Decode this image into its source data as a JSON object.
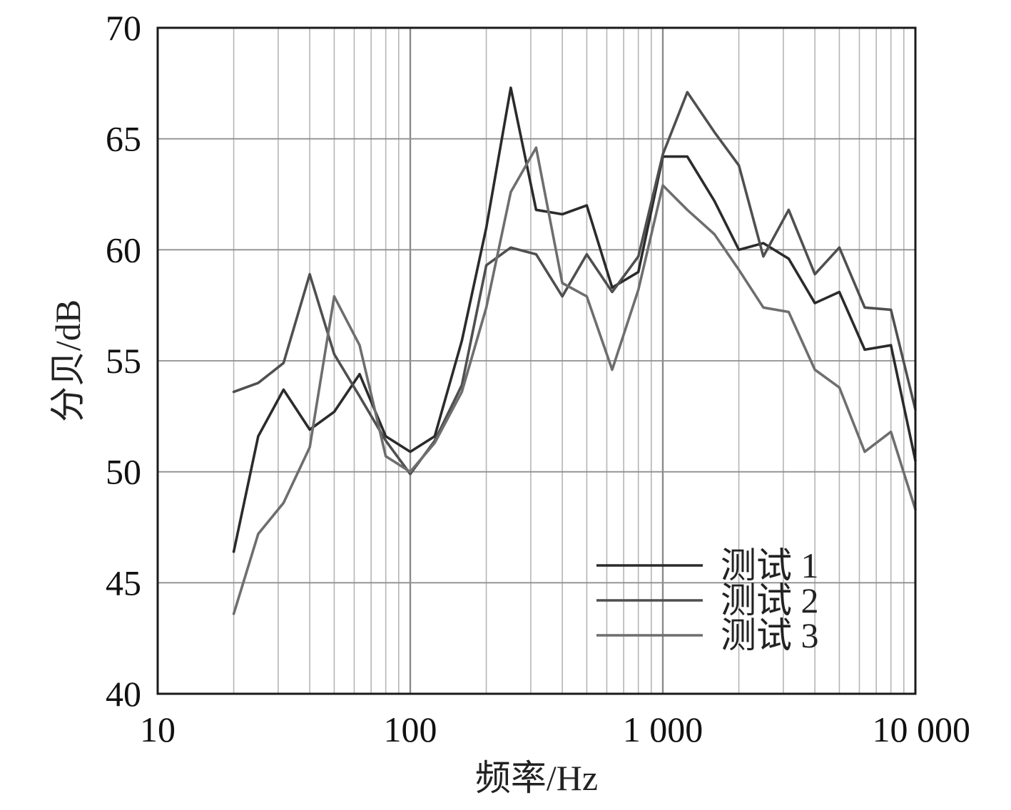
{
  "chart_data": {
    "type": "line",
    "xscale": "log",
    "xlabel": "频率/Hz",
    "ylabel": "分贝/dB",
    "xlim": [
      10,
      10000
    ],
    "ylim": [
      40,
      70
    ],
    "grid": true,
    "legend_position": "bottom-right",
    "x_ticks": [
      {
        "value": 10,
        "label": "10"
      },
      {
        "value": 100,
        "label": "100"
      },
      {
        "value": 1000,
        "label": "1 000"
      },
      {
        "value": 10000,
        "label": "10 000"
      }
    ],
    "y_ticks": [
      {
        "value": 40,
        "label": "40"
      },
      {
        "value": 45,
        "label": "45"
      },
      {
        "value": 50,
        "label": "50"
      },
      {
        "value": 55,
        "label": "55"
      },
      {
        "value": 60,
        "label": "60"
      },
      {
        "value": 65,
        "label": "65"
      },
      {
        "value": 70,
        "label": "70"
      }
    ],
    "x": [
      20,
      25,
      31.5,
      40,
      50,
      63,
      80,
      100,
      125,
      160,
      200,
      250,
      315,
      400,
      500,
      630,
      800,
      1000,
      1250,
      1600,
      2000,
      2500,
      3150,
      4000,
      5000,
      6300,
      8000,
      10000
    ],
    "series": [
      {
        "name": "测试 1",
        "color": "#2b2b2b",
        "values": [
          46.4,
          51.6,
          53.7,
          51.9,
          52.7,
          54.4,
          51.6,
          50.9,
          51.6,
          55.9,
          61.0,
          67.3,
          61.8,
          61.6,
          62.0,
          58.3,
          59.0,
          64.2,
          64.2,
          62.2,
          60.0,
          60.3,
          59.6,
          57.6,
          58.1,
          55.5,
          55.7,
          50.5
        ]
      },
      {
        "name": "测试 2",
        "color": "#4f4f4f",
        "values": [
          53.6,
          54.0,
          54.9,
          58.9,
          55.3,
          53.4,
          51.4,
          49.9,
          51.4,
          53.9,
          59.3,
          60.1,
          59.8,
          57.9,
          59.8,
          58.1,
          59.7,
          64.3,
          67.1,
          65.3,
          63.8,
          59.7,
          61.8,
          58.9,
          60.1,
          57.4,
          57.3,
          52.8
        ]
      },
      {
        "name": "测试 3",
        "color": "#6e6e6e",
        "values": [
          43.6,
          47.2,
          48.6,
          51.1,
          57.9,
          55.7,
          50.7,
          50.0,
          51.3,
          53.6,
          57.4,
          62.6,
          64.6,
          58.5,
          57.9,
          54.6,
          58.2,
          62.9,
          61.8,
          60.7,
          59.1,
          57.4,
          57.2,
          54.6,
          53.8,
          50.9,
          51.8,
          48.3
        ]
      }
    ]
  }
}
